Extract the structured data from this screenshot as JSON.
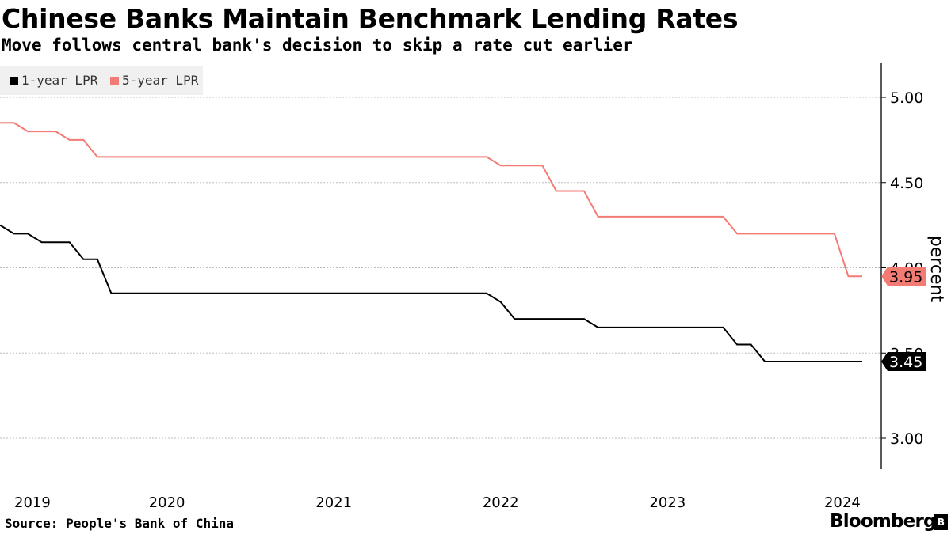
{
  "chart_data": {
    "type": "line",
    "title": "Chinese Banks Maintain Benchmark Lending Rates",
    "subtitle": "Move follows central bank's decision to skip a rate cut earlier",
    "ylabel": "percent",
    "ylim": [
      2.8,
      5.2
    ],
    "yticks": [
      "3.00",
      "3.50",
      "4.00",
      "4.50",
      "5.00"
    ],
    "xticks": [
      "2019",
      "2020",
      "2021",
      "2022",
      "2023",
      "2024"
    ],
    "x_range": [
      "2019-01",
      "2024-03"
    ],
    "grid": true,
    "legend_position": "top-left",
    "series": [
      {
        "name": "1-year LPR",
        "color": "#000000",
        "end_label": "3.45",
        "points": [
          [
            "2019-01",
            4.25
          ],
          [
            "2019-02",
            4.2
          ],
          [
            "2019-03",
            4.2
          ],
          [
            "2019-04",
            4.15
          ],
          [
            "2019-05",
            4.15
          ],
          [
            "2019-06",
            4.15
          ],
          [
            "2019-07",
            4.05
          ],
          [
            "2019-08",
            4.05
          ],
          [
            "2019-09",
            3.85
          ],
          [
            "2020-01",
            3.85
          ],
          [
            "2021-01",
            3.85
          ],
          [
            "2021-12",
            3.85
          ],
          [
            "2022-01",
            3.8
          ],
          [
            "2022-02",
            3.7
          ],
          [
            "2022-07",
            3.7
          ],
          [
            "2022-08",
            3.65
          ],
          [
            "2023-05",
            3.65
          ],
          [
            "2023-06",
            3.55
          ],
          [
            "2023-07",
            3.55
          ],
          [
            "2023-08",
            3.45
          ],
          [
            "2024-03",
            3.45
          ]
        ]
      },
      {
        "name": "5-year LPR",
        "color": "#f47b74",
        "end_label": "3.95",
        "points": [
          [
            "2019-01",
            4.85
          ],
          [
            "2019-02",
            4.85
          ],
          [
            "2019-03",
            4.8
          ],
          [
            "2019-04",
            4.8
          ],
          [
            "2019-05",
            4.8
          ],
          [
            "2019-06",
            4.75
          ],
          [
            "2019-07",
            4.75
          ],
          [
            "2019-08",
            4.65
          ],
          [
            "2020-01",
            4.65
          ],
          [
            "2021-01",
            4.65
          ],
          [
            "2021-12",
            4.65
          ],
          [
            "2022-01",
            4.6
          ],
          [
            "2022-04",
            4.6
          ],
          [
            "2022-05",
            4.45
          ],
          [
            "2022-07",
            4.45
          ],
          [
            "2022-08",
            4.3
          ],
          [
            "2023-05",
            4.3
          ],
          [
            "2023-06",
            4.2
          ],
          [
            "2024-01",
            4.2
          ],
          [
            "2024-02",
            3.95
          ],
          [
            "2024-03",
            3.95
          ]
        ]
      }
    ]
  },
  "footer": {
    "source": "Source: People's Bank of China",
    "brand": "Bloomberg",
    "brand_icon": "bloomberg-terminal-icon"
  }
}
